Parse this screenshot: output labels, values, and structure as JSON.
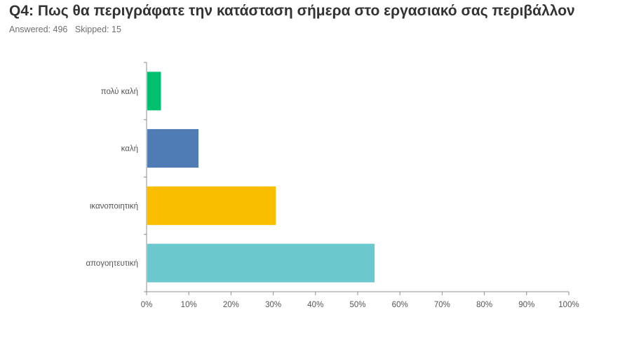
{
  "title": "Q4: Πως θα περιγράφατε την κατάσταση σήμερα στο εργασιακό σας περιβάλλον",
  "answered": "Answered: 496",
  "skipped": "Skipped: 15",
  "chart_data": {
    "type": "bar",
    "orientation": "horizontal",
    "title": "Q4: Πως θα περιγράφατε την κατάσταση σήμερα στο εργασιακό σας περιβάλλον",
    "categories": [
      "πολύ καλή",
      "καλή",
      "ικανοποιητική",
      "απογοητευτική"
    ],
    "values": [
      3.4,
      12.3,
      30.6,
      54.0
    ],
    "colors": [
      "#00bf6f",
      "#507cb6",
      "#f9be00",
      "#6bc8cd"
    ],
    "xlim": [
      0,
      100
    ],
    "ticks": [
      "0%",
      "10%",
      "20%",
      "30%",
      "40%",
      "50%",
      "60%",
      "70%",
      "80%",
      "90%",
      "100%"
    ],
    "xlabel": "",
    "ylabel": "",
    "grid": false,
    "legend": "none"
  }
}
